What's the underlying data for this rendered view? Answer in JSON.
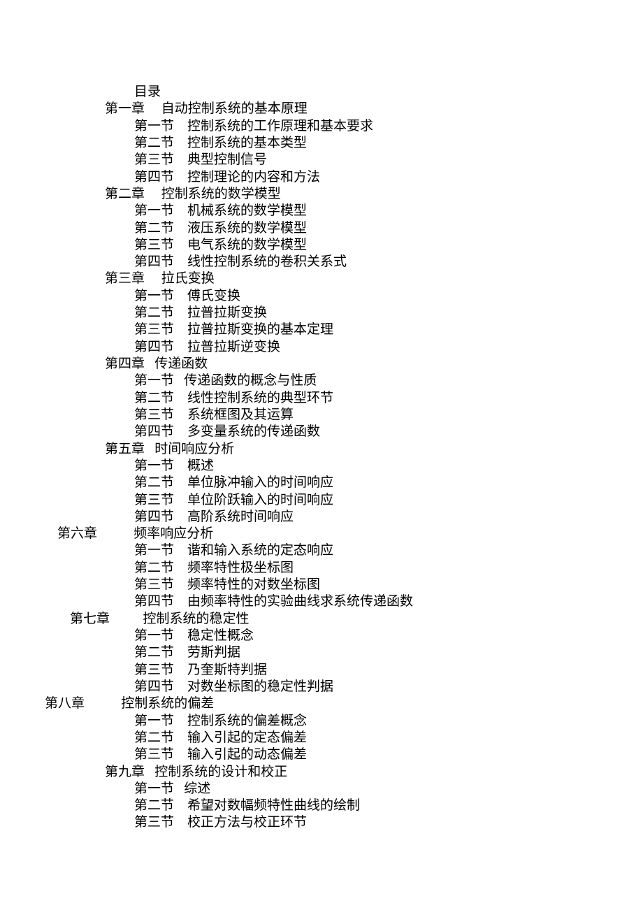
{
  "title": "目录",
  "chapters": [
    {
      "label": "第一章",
      "title": "自动控制系统的基本原理",
      "sep": "     ",
      "style": "chapter",
      "sections": [
        {
          "label": "第一节",
          "title": "控制系统的工作原理和基本要求",
          "sep": "    "
        },
        {
          "label": "第二节",
          "title": "控制系统的基本类型",
          "sep": "    "
        },
        {
          "label": "第三节",
          "title": "典型控制信号",
          "sep": "    "
        },
        {
          "label": "第四节",
          "title": "控制理论的内容和方法",
          "sep": "    "
        }
      ]
    },
    {
      "label": "第二章",
      "title": "控制系统的数学模型",
      "sep": "     ",
      "style": "chapter",
      "sections": [
        {
          "label": "第一节",
          "title": "机械系统的数学模型",
          "sep": "    "
        },
        {
          "label": "第二节",
          "title": "液压系统的数学模型",
          "sep": "    "
        },
        {
          "label": "第三节",
          "title": "电气系统的数学模型",
          "sep": "    "
        },
        {
          "label": "第四节",
          "title": "线性控制系统的卷积关系式",
          "sep": "    "
        }
      ]
    },
    {
      "label": "第三章",
      "title": "拉氏变换",
      "sep": "     ",
      "style": "chapter",
      "sections": [
        {
          "label": "第一节",
          "title": "傅氏变换",
          "sep": "    "
        },
        {
          "label": "第二节",
          "title": "拉普拉斯变换",
          "sep": "    "
        },
        {
          "label": "第三节",
          "title": "拉普拉斯变换的基本定理",
          "sep": "    "
        },
        {
          "label": "第四节",
          "title": "拉普拉斯逆变换",
          "sep": "    "
        }
      ]
    },
    {
      "label": "第四章",
      "title": "传递函数",
      "sep": "   ",
      "style": "chapter",
      "sections": [
        {
          "label": "第一节",
          "title": "传递函数的概念与性质",
          "sep": "   "
        },
        {
          "label": "第二节",
          "title": "线性控制系统的典型环节",
          "sep": "    "
        },
        {
          "label": "第三节",
          "title": "系统框图及其运算",
          "sep": "    "
        },
        {
          "label": "第四节",
          "title": "多变量系统的传递函数",
          "sep": "    "
        }
      ]
    },
    {
      "label": "第五章",
      "title": "时间响应分析",
      "sep": "   ",
      "style": "chapter",
      "sections": [
        {
          "label": "第一节",
          "title": "概述",
          "sep": "    "
        },
        {
          "label": "第二节",
          "title": "单位脉冲输入的时间响应",
          "sep": "    "
        },
        {
          "label": "第三节",
          "title": "单位阶跃输入的时间响应",
          "sep": "    "
        },
        {
          "label": "第四节",
          "title": "高阶系统时间响应",
          "sep": "    "
        }
      ]
    },
    {
      "label": "第六章",
      "title": "频率响应分析",
      "sep": "           ",
      "style": "chapter-alt1",
      "sections": [
        {
          "label": "第一节",
          "title": "谐和输入系统的定态响应",
          "sep": "    "
        },
        {
          "label": "第二节",
          "title": "频率特性极坐标图",
          "sep": "    "
        },
        {
          "label": "第三节",
          "title": "频率特性的对数坐标图",
          "sep": "    "
        },
        {
          "label": "第四节",
          "title": "由频率特性的实验曲线求系统传递函数",
          "sep": "    "
        }
      ]
    },
    {
      "label": "第七章",
      "title": "控制系统的稳定性",
      "sep": "          ",
      "style": "chapter-alt2",
      "sections": [
        {
          "label": "第一节",
          "title": "稳定性概念",
          "sep": "    "
        },
        {
          "label": "第二节",
          "title": "劳斯判据",
          "sep": "    "
        },
        {
          "label": "第三节",
          "title": "乃奎斯特判据",
          "sep": "    "
        },
        {
          "label": "第四节",
          "title": "对数坐标图的稳定性判据",
          "sep": "    "
        }
      ]
    },
    {
      "label": "第八章",
      "title": "控制系统的偏差",
      "sep": "           ",
      "style": "chapter-alt3",
      "sections": [
        {
          "label": "第一节",
          "title": "控制系统的偏差概念",
          "sep": "    "
        },
        {
          "label": "第二节",
          "title": "输入引起的定态偏差",
          "sep": "    "
        },
        {
          "label": "第三节",
          "title": "输入引起的动态偏差",
          "sep": "    "
        }
      ]
    },
    {
      "label": "第九章",
      "title": "控制系统的设计和校正",
      "sep": "   ",
      "style": "chapter",
      "sections": [
        {
          "label": "第一节",
          "title": "综述",
          "sep": "   "
        },
        {
          "label": "第二节",
          "title": "希望对数幅频特性曲线的绘制",
          "sep": "    "
        },
        {
          "label": "第三节",
          "title": "校正方法与校正环节",
          "sep": "    "
        }
      ]
    }
  ]
}
